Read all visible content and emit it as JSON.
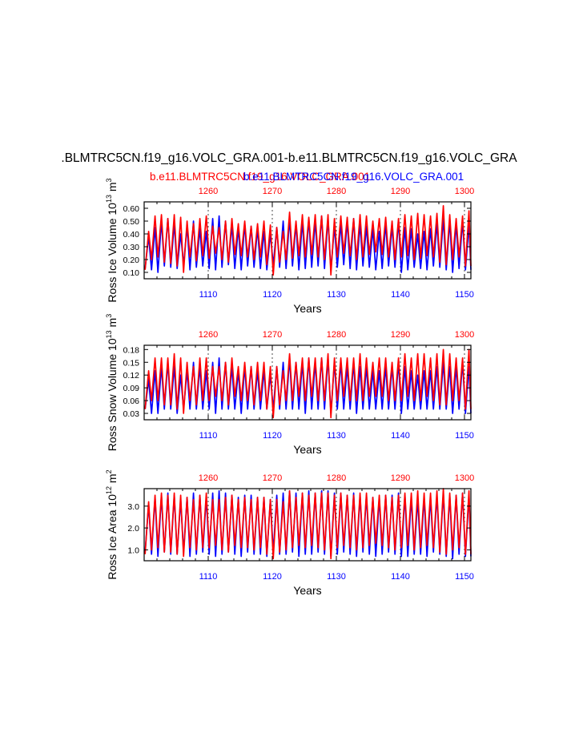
{
  "title": ".BLMTRC5CN.f19_g16.VOLC_GRA.001-b.e11.BLMTRC5CN.f19_g16.VOLC_GRA",
  "legend": {
    "red_label": "b.e11.BLMTRC5CN.f19_g16.VOLC_GRA.001",
    "blue_label": "b.e11.BLMTRC5CN.f19_g16.VOLC_GRA.001"
  },
  "colors": {
    "red": "#ff0000",
    "blue": "#0000ff",
    "axis": "#000000"
  },
  "chart_data": [
    {
      "type": "line",
      "name": "volume",
      "ylabel_main": "Ross Ice Volume 10",
      "ylabel_exp": "13",
      "ylabel_unit": " m",
      "ylabel_unit_exp": "3",
      "xlabel": "Years",
      "xlim_bottom": [
        1100,
        1151
      ],
      "xlim_top": [
        1250,
        1301
      ],
      "ylim": [
        0.05,
        0.65
      ],
      "yticks": [
        0.1,
        0.2,
        0.3,
        0.4,
        0.5,
        0.6
      ],
      "ytick_labels": [
        "0.10",
        "0.20",
        "0.30",
        "0.40",
        "0.50",
        "0.60"
      ],
      "bottom_ticks": [
        1110,
        1120,
        1130,
        1140,
        1150
      ],
      "bottom_tick_labels": [
        "1110",
        "1120",
        "1130",
        "1140",
        "1150"
      ],
      "top_ticks": [
        1260,
        1270,
        1280,
        1290,
        1300
      ],
      "top_tick_labels": [
        "1260",
        "1270",
        "1280",
        "1290",
        "1300"
      ],
      "series": [
        {
          "name": "blue",
          "color": "#0000ff",
          "min_values": [
            0.13,
            0.12,
            0.1,
            0.15,
            0.14,
            0.13,
            0.16,
            0.12,
            0.14,
            0.15,
            0.13,
            0.12,
            0.14,
            0.16,
            0.13,
            0.12,
            0.15,
            0.14,
            0.13,
            0.12,
            0.16,
            0.14,
            0.13,
            0.15,
            0.12,
            0.13,
            0.14,
            0.15,
            0.13,
            0.12,
            0.14,
            0.16,
            0.13,
            0.12,
            0.15,
            0.14,
            0.12,
            0.13,
            0.15,
            0.14,
            0.1,
            0.12,
            0.14,
            0.13,
            0.12,
            0.15,
            0.14,
            0.12,
            0.1,
            0.13,
            0.12
          ],
          "max_values": [
            0.38,
            0.45,
            0.5,
            0.52,
            0.48,
            0.4,
            0.46,
            0.5,
            0.44,
            0.42,
            0.52,
            0.54,
            0.5,
            0.47,
            0.45,
            0.48,
            0.46,
            0.44,
            0.42,
            0.4,
            0.45,
            0.5,
            0.52,
            0.48,
            0.5,
            0.52,
            0.5,
            0.54,
            0.52,
            0.46,
            0.48,
            0.5,
            0.52,
            0.48,
            0.46,
            0.44,
            0.42,
            0.48,
            0.46,
            0.5,
            0.45,
            0.44,
            0.4,
            0.42,
            0.44,
            0.48,
            0.52,
            0.5,
            0.48,
            0.5,
            0.47
          ]
        },
        {
          "name": "red",
          "color": "#ff0000",
          "min_values": [
            0.12,
            0.2,
            0.22,
            0.18,
            0.17,
            0.15,
            0.1,
            0.22,
            0.19,
            0.23,
            0.21,
            0.25,
            0.2,
            0.18,
            0.24,
            0.23,
            0.22,
            0.2,
            0.22,
            0.16,
            0.08,
            0.18,
            0.2,
            0.21,
            0.23,
            0.22,
            0.24,
            0.22,
            0.2,
            0.08,
            0.22,
            0.25,
            0.23,
            0.2,
            0.22,
            0.24,
            0.26,
            0.24,
            0.22,
            0.2,
            0.22,
            0.23,
            0.2,
            0.21,
            0.23,
            0.22,
            0.18,
            0.16,
            0.2,
            0.22,
            0.15
          ],
          "max_values": [
            0.42,
            0.54,
            0.55,
            0.52,
            0.55,
            0.53,
            0.5,
            0.48,
            0.52,
            0.54,
            0.46,
            0.45,
            0.5,
            0.52,
            0.48,
            0.5,
            0.46,
            0.48,
            0.5,
            0.47,
            0.45,
            0.42,
            0.57,
            0.5,
            0.55,
            0.53,
            0.55,
            0.54,
            0.55,
            0.52,
            0.54,
            0.53,
            0.52,
            0.55,
            0.54,
            0.5,
            0.52,
            0.53,
            0.5,
            0.52,
            0.55,
            0.54,
            0.56,
            0.55,
            0.54,
            0.56,
            0.62,
            0.55,
            0.52,
            0.54,
            0.58
          ]
        }
      ]
    },
    {
      "type": "line",
      "name": "snow",
      "ylabel_main": "Ross Snow Volume 10",
      "ylabel_exp": "13",
      "ylabel_unit": " m",
      "ylabel_unit_exp": "3",
      "xlabel": "Years",
      "xlim_bottom": [
        1100,
        1151
      ],
      "xlim_top": [
        1250,
        1301
      ],
      "ylim": [
        0.015,
        0.19
      ],
      "yticks": [
        0.03,
        0.06,
        0.09,
        0.12,
        0.15,
        0.18
      ],
      "ytick_labels": [
        "0.03",
        "0.06",
        "0.09",
        "0.12",
        "0.15",
        "0.18"
      ],
      "bottom_ticks": [
        1110,
        1120,
        1130,
        1140,
        1150
      ],
      "bottom_tick_labels": [
        "1110",
        "1120",
        "1130",
        "1140",
        "1150"
      ],
      "top_ticks": [
        1260,
        1270,
        1280,
        1290,
        1300
      ],
      "top_tick_labels": [
        "1260",
        "1270",
        "1280",
        "1290",
        "1300"
      ],
      "series": [
        {
          "name": "blue",
          "color": "#0000ff",
          "min_values": [
            0.04,
            0.03,
            0.03,
            0.04,
            0.04,
            0.03,
            0.04,
            0.04,
            0.04,
            0.04,
            0.04,
            0.03,
            0.04,
            0.04,
            0.04,
            0.03,
            0.04,
            0.04,
            0.04,
            0.04,
            0.04,
            0.04,
            0.04,
            0.04,
            0.04,
            0.03,
            0.04,
            0.04,
            0.04,
            0.03,
            0.04,
            0.04,
            0.04,
            0.03,
            0.04,
            0.04,
            0.04,
            0.04,
            0.04,
            0.04,
            0.03,
            0.04,
            0.04,
            0.04,
            0.04,
            0.04,
            0.04,
            0.04,
            0.03,
            0.04,
            0.03
          ],
          "max_values": [
            0.11,
            0.13,
            0.14,
            0.15,
            0.14,
            0.12,
            0.13,
            0.15,
            0.14,
            0.13,
            0.15,
            0.16,
            0.15,
            0.14,
            0.13,
            0.14,
            0.14,
            0.13,
            0.13,
            0.12,
            0.14,
            0.15,
            0.16,
            0.15,
            0.15,
            0.16,
            0.15,
            0.16,
            0.16,
            0.15,
            0.15,
            0.14,
            0.15,
            0.14,
            0.14,
            0.13,
            0.13,
            0.14,
            0.14,
            0.15,
            0.14,
            0.13,
            0.12,
            0.13,
            0.13,
            0.14,
            0.15,
            0.14,
            0.14,
            0.15,
            0.14
          ]
        },
        {
          "name": "red",
          "color": "#ff0000",
          "min_values": [
            0.04,
            0.06,
            0.06,
            0.05,
            0.05,
            0.04,
            0.03,
            0.06,
            0.05,
            0.06,
            0.06,
            0.07,
            0.06,
            0.05,
            0.07,
            0.06,
            0.06,
            0.05,
            0.06,
            0.04,
            0.02,
            0.05,
            0.06,
            0.06,
            0.07,
            0.06,
            0.07,
            0.06,
            0.06,
            0.02,
            0.06,
            0.07,
            0.06,
            0.06,
            0.06,
            0.07,
            0.07,
            0.07,
            0.06,
            0.06,
            0.06,
            0.07,
            0.06,
            0.06,
            0.07,
            0.06,
            0.05,
            0.05,
            0.06,
            0.06,
            0.04
          ],
          "max_values": [
            0.13,
            0.16,
            0.16,
            0.16,
            0.17,
            0.16,
            0.15,
            0.14,
            0.16,
            0.16,
            0.14,
            0.14,
            0.15,
            0.16,
            0.14,
            0.15,
            0.14,
            0.15,
            0.15,
            0.14,
            0.14,
            0.13,
            0.17,
            0.15,
            0.16,
            0.16,
            0.16,
            0.16,
            0.17,
            0.16,
            0.16,
            0.16,
            0.16,
            0.17,
            0.16,
            0.15,
            0.16,
            0.16,
            0.15,
            0.16,
            0.17,
            0.16,
            0.17,
            0.17,
            0.16,
            0.17,
            0.18,
            0.17,
            0.16,
            0.16,
            0.18
          ]
        }
      ]
    },
    {
      "type": "line",
      "name": "area",
      "ylabel_main": "Ross Ice Area 10",
      "ylabel_exp": "12",
      "ylabel_unit": " m",
      "ylabel_unit_exp": "2",
      "xlabel": "Years",
      "xlim_bottom": [
        1100,
        1151
      ],
      "xlim_top": [
        1250,
        1301
      ],
      "ylim": [
        0.5,
        3.8
      ],
      "yticks": [
        1.0,
        2.0,
        3.0
      ],
      "ytick_labels": [
        "1.0",
        "2.0",
        "3.0"
      ],
      "bottom_ticks": [
        1110,
        1120,
        1130,
        1140,
        1150
      ],
      "bottom_tick_labels": [
        "1110",
        "1120",
        "1130",
        "1140",
        "1150"
      ],
      "top_ticks": [
        1260,
        1270,
        1280,
        1290,
        1300
      ],
      "top_tick_labels": [
        "1260",
        "1270",
        "1280",
        "1290",
        "1300"
      ],
      "series": [
        {
          "name": "blue",
          "color": "#0000ff",
          "min_values": [
            0.9,
            0.8,
            0.7,
            0.9,
            0.8,
            0.8,
            0.9,
            0.7,
            0.8,
            0.9,
            0.8,
            0.7,
            0.8,
            0.9,
            0.8,
            0.7,
            0.9,
            0.8,
            0.8,
            0.7,
            0.9,
            0.8,
            0.8,
            0.9,
            0.7,
            0.8,
            0.8,
            0.9,
            0.8,
            0.7,
            0.8,
            0.9,
            0.8,
            0.7,
            0.9,
            0.8,
            0.7,
            0.8,
            0.9,
            0.8,
            0.7,
            0.7,
            0.8,
            0.8,
            0.7,
            0.9,
            0.8,
            0.7,
            0.6,
            0.8,
            0.7
          ],
          "max_values": [
            3.1,
            3.4,
            3.5,
            3.6,
            3.5,
            3.3,
            3.4,
            3.6,
            3.5,
            3.4,
            3.6,
            3.7,
            3.6,
            3.5,
            3.4,
            3.5,
            3.5,
            3.4,
            3.4,
            3.3,
            3.5,
            3.6,
            3.7,
            3.6,
            3.6,
            3.7,
            3.6,
            3.7,
            3.7,
            3.6,
            3.6,
            3.5,
            3.6,
            3.5,
            3.5,
            3.4,
            3.4,
            3.5,
            3.5,
            3.6,
            3.5,
            3.4,
            3.3,
            3.4,
            3.4,
            3.5,
            3.6,
            3.5,
            3.5,
            3.6,
            3.5
          ]
        },
        {
          "name": "red",
          "color": "#ff0000",
          "min_values": [
            0.8,
            1.0,
            1.1,
            0.9,
            0.9,
            0.8,
            0.7,
            1.1,
            1.0,
            1.1,
            1.1,
            1.2,
            1.0,
            0.9,
            1.2,
            1.1,
            1.1,
            1.0,
            1.1,
            0.8,
            0.6,
            0.9,
            1.0,
            1.1,
            1.2,
            1.1,
            1.2,
            1.1,
            1.0,
            0.6,
            1.1,
            1.2,
            1.1,
            1.0,
            1.1,
            1.2,
            1.3,
            1.2,
            1.1,
            1.0,
            1.1,
            1.2,
            1.0,
            1.1,
            1.2,
            1.1,
            0.9,
            0.8,
            1.0,
            1.1,
            0.8
          ],
          "max_values": [
            3.2,
            3.5,
            3.6,
            3.5,
            3.6,
            3.5,
            3.4,
            3.3,
            3.5,
            3.6,
            3.3,
            3.3,
            3.4,
            3.5,
            3.3,
            3.4,
            3.3,
            3.4,
            3.4,
            3.3,
            3.3,
            3.2,
            3.7,
            3.4,
            3.6,
            3.5,
            3.6,
            3.6,
            3.6,
            3.5,
            3.6,
            3.5,
            3.5,
            3.6,
            3.6,
            3.4,
            3.5,
            3.5,
            3.4,
            3.5,
            3.6,
            3.6,
            3.7,
            3.6,
            3.6,
            3.7,
            3.8,
            3.6,
            3.5,
            3.6,
            3.7
          ]
        }
      ]
    }
  ]
}
